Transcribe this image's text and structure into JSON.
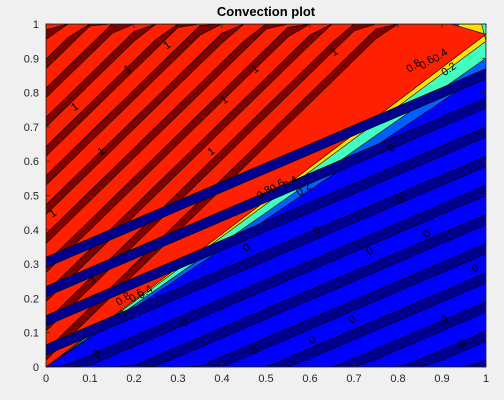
{
  "chart_data": {
    "type": "heatmap",
    "subtype": "filled-contour",
    "title": "Convection plot",
    "xlabel": "",
    "ylabel": "",
    "xlim": [
      0,
      1
    ],
    "ylim": [
      0,
      1
    ],
    "xticks": [
      "0",
      "0.1",
      "0.2",
      "0.3",
      "0.4",
      "0.5",
      "0.6",
      "0.7",
      "0.8",
      "0.9",
      "1"
    ],
    "yticks": [
      "0",
      "0.1",
      "0.2",
      "0.3",
      "0.4",
      "0.5",
      "0.6",
      "0.7",
      "0.8",
      "0.9",
      "1"
    ],
    "colormap": "jet",
    "contour_levels": [
      0,
      0.2,
      0.4,
      0.6,
      0.8,
      1
    ],
    "level_colors": {
      "0.0": "#00008f",
      "0.1": "#0000ff",
      "0.3": "#0060ff",
      "0.5": "#40ffbf",
      "0.7": "#ffdf00",
      "0.9": "#ff2000",
      "1.0": "#800000"
    },
    "front": "diagonal transition from value 1 (upper-left) to value 0 (lower-right)",
    "contour_labels": [
      {
        "text": "1",
        "x": 0.02,
        "y": 0.44
      },
      {
        "text": "1",
        "x": 0.07,
        "y": 0.75
      },
      {
        "text": "1",
        "x": 0.13,
        "y": 0.62
      },
      {
        "text": "1",
        "x": 0.11,
        "y": 0.25
      },
      {
        "text": "1",
        "x": 0.18,
        "y": 0.15
      },
      {
        "text": "1",
        "x": 0.19,
        "y": 0.86
      },
      {
        "text": "1",
        "x": 0.28,
        "y": 0.93
      },
      {
        "text": "1",
        "x": 0.38,
        "y": 0.62
      },
      {
        "text": "1",
        "x": 0.41,
        "y": 0.77
      },
      {
        "text": "1",
        "x": 0.48,
        "y": 0.86
      },
      {
        "text": "1",
        "x": 0.66,
        "y": 0.91
      },
      {
        "text": "0.8",
        "x": 0.18,
        "y": 0.19
      },
      {
        "text": "0.6",
        "x": 0.21,
        "y": 0.2
      },
      {
        "text": "0.4",
        "x": 0.23,
        "y": 0.21
      },
      {
        "text": "0.8",
        "x": 0.5,
        "y": 0.5
      },
      {
        "text": "0.6",
        "x": 0.53,
        "y": 0.52
      },
      {
        "text": "0.4",
        "x": 0.56,
        "y": 0.53
      },
      {
        "text": "0.2",
        "x": 0.59,
        "y": 0.51
      },
      {
        "text": "0.8",
        "x": 0.84,
        "y": 0.87
      },
      {
        "text": "0.6",
        "x": 0.87,
        "y": 0.88
      },
      {
        "text": "0.4",
        "x": 0.9,
        "y": 0.9
      },
      {
        "text": "0.2",
        "x": 0.92,
        "y": 0.86
      },
      {
        "text": "0",
        "x": 0.12,
        "y": 0.03
      },
      {
        "text": "0",
        "x": 0.32,
        "y": 0.12
      },
      {
        "text": "0",
        "x": 0.46,
        "y": 0.34
      },
      {
        "text": "0",
        "x": 0.48,
        "y": 0.04
      },
      {
        "text": "0",
        "x": 0.61,
        "y": 0.07
      },
      {
        "text": "0",
        "x": 0.62,
        "y": 0.39
      },
      {
        "text": "0",
        "x": 0.7,
        "y": 0.13
      },
      {
        "text": "0",
        "x": 0.74,
        "y": 0.33
      },
      {
        "text": "0",
        "x": 0.79,
        "y": 0.63
      },
      {
        "text": "0",
        "x": 0.81,
        "y": 0.48
      },
      {
        "text": "0",
        "x": 0.87,
        "y": 0.38
      },
      {
        "text": "0",
        "x": 0.91,
        "y": 0.13
      },
      {
        "text": "0",
        "x": 0.95,
        "y": 0.06
      },
      {
        "text": "0",
        "x": 0.98,
        "y": 0.28
      }
    ],
    "grid": false,
    "legend": "none"
  }
}
